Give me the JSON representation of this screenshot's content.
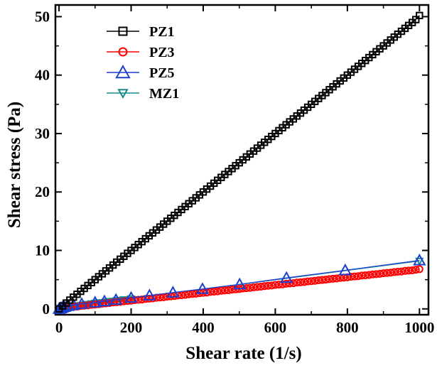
{
  "chart_data": {
    "type": "line",
    "title": "",
    "xlabel": "Shear rate (1/s)",
    "ylabel": "Shear stress (Pa)",
    "xlim": [
      -10,
      1025
    ],
    "ylim": [
      -1,
      52
    ],
    "x_ticks": [
      "0",
      "200",
      "400",
      "600",
      "800",
      "1000"
    ],
    "y_ticks": [
      "0",
      "10",
      "20",
      "30",
      "40",
      "50"
    ],
    "grid": false,
    "legend_position": "top-left",
    "series": [
      {
        "name": "PZ1",
        "color": "#000000",
        "marker": "square",
        "x": [
          0,
          10,
          20,
          30,
          40,
          50,
          60,
          70,
          80,
          90,
          100,
          110,
          120,
          130,
          140,
          150,
          160,
          170,
          180,
          190,
          200,
          210,
          220,
          230,
          240,
          250,
          260,
          270,
          280,
          290,
          300,
          310,
          320,
          330,
          340,
          350,
          360,
          370,
          380,
          390,
          400,
          410,
          420,
          430,
          440,
          450,
          460,
          470,
          480,
          490,
          500,
          510,
          520,
          530,
          540,
          550,
          560,
          570,
          580,
          590,
          600,
          610,
          620,
          630,
          640,
          650,
          660,
          670,
          680,
          690,
          700,
          710,
          720,
          730,
          740,
          750,
          760,
          770,
          780,
          790,
          800,
          810,
          820,
          830,
          840,
          850,
          860,
          870,
          880,
          890,
          900,
          910,
          920,
          930,
          940,
          950,
          960,
          970,
          980,
          990,
          1000
        ],
        "y": [
          0.0,
          0.5,
          1.0,
          1.5,
          2.0,
          2.5,
          3.0,
          3.5,
          4.0,
          4.5,
          5.0,
          5.5,
          6.0,
          6.5,
          7.0,
          7.5,
          8.0,
          8.5,
          9.0,
          9.5,
          10.0,
          10.5,
          11.0,
          11.5,
          12.0,
          12.5,
          13.0,
          13.5,
          14.0,
          14.5,
          15.0,
          15.5,
          16.0,
          16.5,
          17.0,
          17.5,
          18.0,
          18.5,
          19.0,
          19.5,
          20.0,
          20.5,
          21.0,
          21.5,
          22.0,
          22.5,
          23.0,
          23.5,
          24.0,
          24.5,
          25.0,
          25.5,
          26.0,
          26.5,
          27.0,
          27.5,
          28.0,
          28.5,
          29.0,
          29.5,
          30.0,
          30.5,
          31.0,
          31.5,
          32.0,
          32.5,
          33.0,
          33.5,
          34.0,
          34.5,
          35.0,
          35.5,
          36.0,
          36.5,
          37.0,
          37.5,
          38.0,
          38.5,
          39.0,
          39.5,
          40.0,
          40.5,
          41.0,
          41.5,
          42.0,
          42.5,
          43.0,
          43.5,
          44.0,
          44.5,
          45.0,
          45.5,
          46.0,
          46.5,
          47.0,
          47.5,
          48.0,
          48.5,
          49.0,
          49.5,
          50.2
        ]
      },
      {
        "name": "PZ3",
        "color": "#ff0000",
        "marker": "circle",
        "x": [
          0,
          10,
          20,
          30,
          40,
          50,
          60,
          70,
          80,
          90,
          100,
          110,
          120,
          130,
          140,
          150,
          160,
          170,
          180,
          190,
          200,
          210,
          220,
          230,
          240,
          250,
          260,
          270,
          280,
          290,
          300,
          310,
          320,
          330,
          340,
          350,
          360,
          370,
          380,
          390,
          400,
          410,
          420,
          430,
          440,
          450,
          460,
          470,
          480,
          490,
          500,
          510,
          520,
          530,
          540,
          550,
          560,
          570,
          580,
          590,
          600,
          610,
          620,
          630,
          640,
          650,
          660,
          670,
          680,
          690,
          700,
          710,
          720,
          730,
          740,
          750,
          760,
          770,
          780,
          790,
          800,
          810,
          820,
          830,
          840,
          850,
          860,
          870,
          880,
          890,
          900,
          910,
          920,
          930,
          940,
          950,
          960,
          970,
          980,
          990,
          1000
        ],
        "y": [
          0.0,
          0.1,
          0.2,
          0.3,
          0.35,
          0.4,
          0.5,
          0.55,
          0.6,
          0.7,
          0.75,
          0.8,
          0.9,
          0.95,
          1.0,
          1.1,
          1.15,
          1.2,
          1.3,
          1.35,
          1.4,
          1.5,
          1.55,
          1.6,
          1.7,
          1.75,
          1.8,
          1.9,
          1.95,
          2.0,
          2.1,
          2.15,
          2.2,
          2.3,
          2.35,
          2.4,
          2.5,
          2.55,
          2.6,
          2.7,
          2.75,
          2.8,
          2.9,
          2.95,
          3.0,
          3.1,
          3.15,
          3.2,
          3.3,
          3.35,
          3.4,
          3.5,
          3.55,
          3.6,
          3.7,
          3.75,
          3.8,
          3.9,
          3.95,
          4.0,
          4.1,
          4.15,
          4.2,
          4.3,
          4.35,
          4.4,
          4.5,
          4.55,
          4.6,
          4.7,
          4.75,
          4.8,
          4.9,
          4.95,
          5.0,
          5.1,
          5.15,
          5.2,
          5.3,
          5.35,
          5.4,
          5.5,
          5.55,
          5.6,
          5.7,
          5.75,
          5.8,
          5.9,
          5.95,
          6.0,
          6.1,
          6.15,
          6.2,
          6.3,
          6.35,
          6.4,
          6.5,
          6.55,
          6.6,
          6.7,
          6.8
        ]
      },
      {
        "name": "PZ5",
        "color": "#1c3fd0",
        "marker": "triangle-up",
        "x": [
          0,
          4,
          6,
          10,
          16,
          25,
          40,
          63,
          100,
          126,
          158,
          200,
          251,
          316,
          398,
          501,
          631,
          794,
          1000
        ],
        "y": [
          0.0,
          0.1,
          0.15,
          0.25,
          0.35,
          0.5,
          0.65,
          0.85,
          1.1,
          1.3,
          1.55,
          1.9,
          2.3,
          2.8,
          3.4,
          4.2,
          5.3,
          6.6,
          8.3
        ]
      },
      {
        "name": "MZ1",
        "color": "#1a8b8b",
        "marker": "triangle-down",
        "x": [
          0,
          5,
          10,
          15,
          20,
          25,
          30,
          35,
          40,
          45,
          50,
          55,
          60,
          65,
          70,
          75,
          80,
          90,
          100,
          110,
          120,
          130,
          140,
          150,
          160,
          170,
          180,
          200,
          1000
        ],
        "y": [
          0.0,
          0.05,
          0.1,
          0.15,
          0.2,
          0.25,
          0.3,
          0.35,
          0.4,
          0.45,
          0.5,
          0.55,
          0.6,
          0.65,
          0.7,
          0.75,
          0.8,
          0.9,
          1.0,
          1.05,
          1.1,
          1.2,
          1.3,
          1.35,
          1.45,
          1.5,
          1.6,
          1.75,
          8.2
        ]
      }
    ]
  }
}
